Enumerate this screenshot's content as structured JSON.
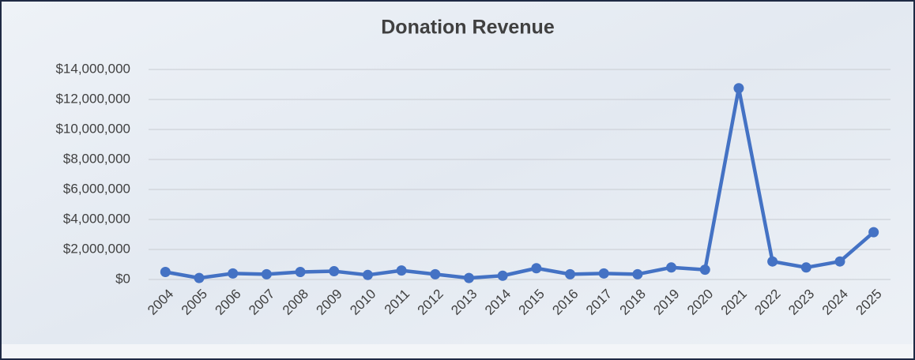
{
  "chart_data": {
    "type": "line",
    "title": "Donation Revenue",
    "categories": [
      "2004",
      "2005",
      "2006",
      "2007",
      "2008",
      "2009",
      "2010",
      "2011",
      "2012",
      "2013",
      "2014",
      "2015",
      "2016",
      "2017",
      "2018",
      "2019",
      "2020",
      "2021",
      "2022",
      "2023",
      "2024",
      "2025"
    ],
    "series": [
      {
        "name": "Donation Revenue",
        "color": "#4472c4",
        "values": [
          500000,
          100000,
          400000,
          350000,
          500000,
          550000,
          300000,
          600000,
          350000,
          100000,
          250000,
          750000,
          350000,
          400000,
          350000,
          800000,
          650000,
          12750000,
          1200000,
          800000,
          1200000,
          3150000
        ]
      }
    ],
    "ylim": [
      0,
      14000000
    ],
    "yticks": [
      {
        "value": 0,
        "label": "$0"
      },
      {
        "value": 2000000,
        "label": "$2,000,000"
      },
      {
        "value": 4000000,
        "label": "$4,000,000"
      },
      {
        "value": 6000000,
        "label": "$6,000,000"
      },
      {
        "value": 8000000,
        "label": "$8,000,000"
      },
      {
        "value": 10000000,
        "label": "$10,000,000"
      },
      {
        "value": 12000000,
        "label": "$12,000,000"
      },
      {
        "value": 14000000,
        "label": "$14,000,000"
      }
    ],
    "grid": true
  }
}
